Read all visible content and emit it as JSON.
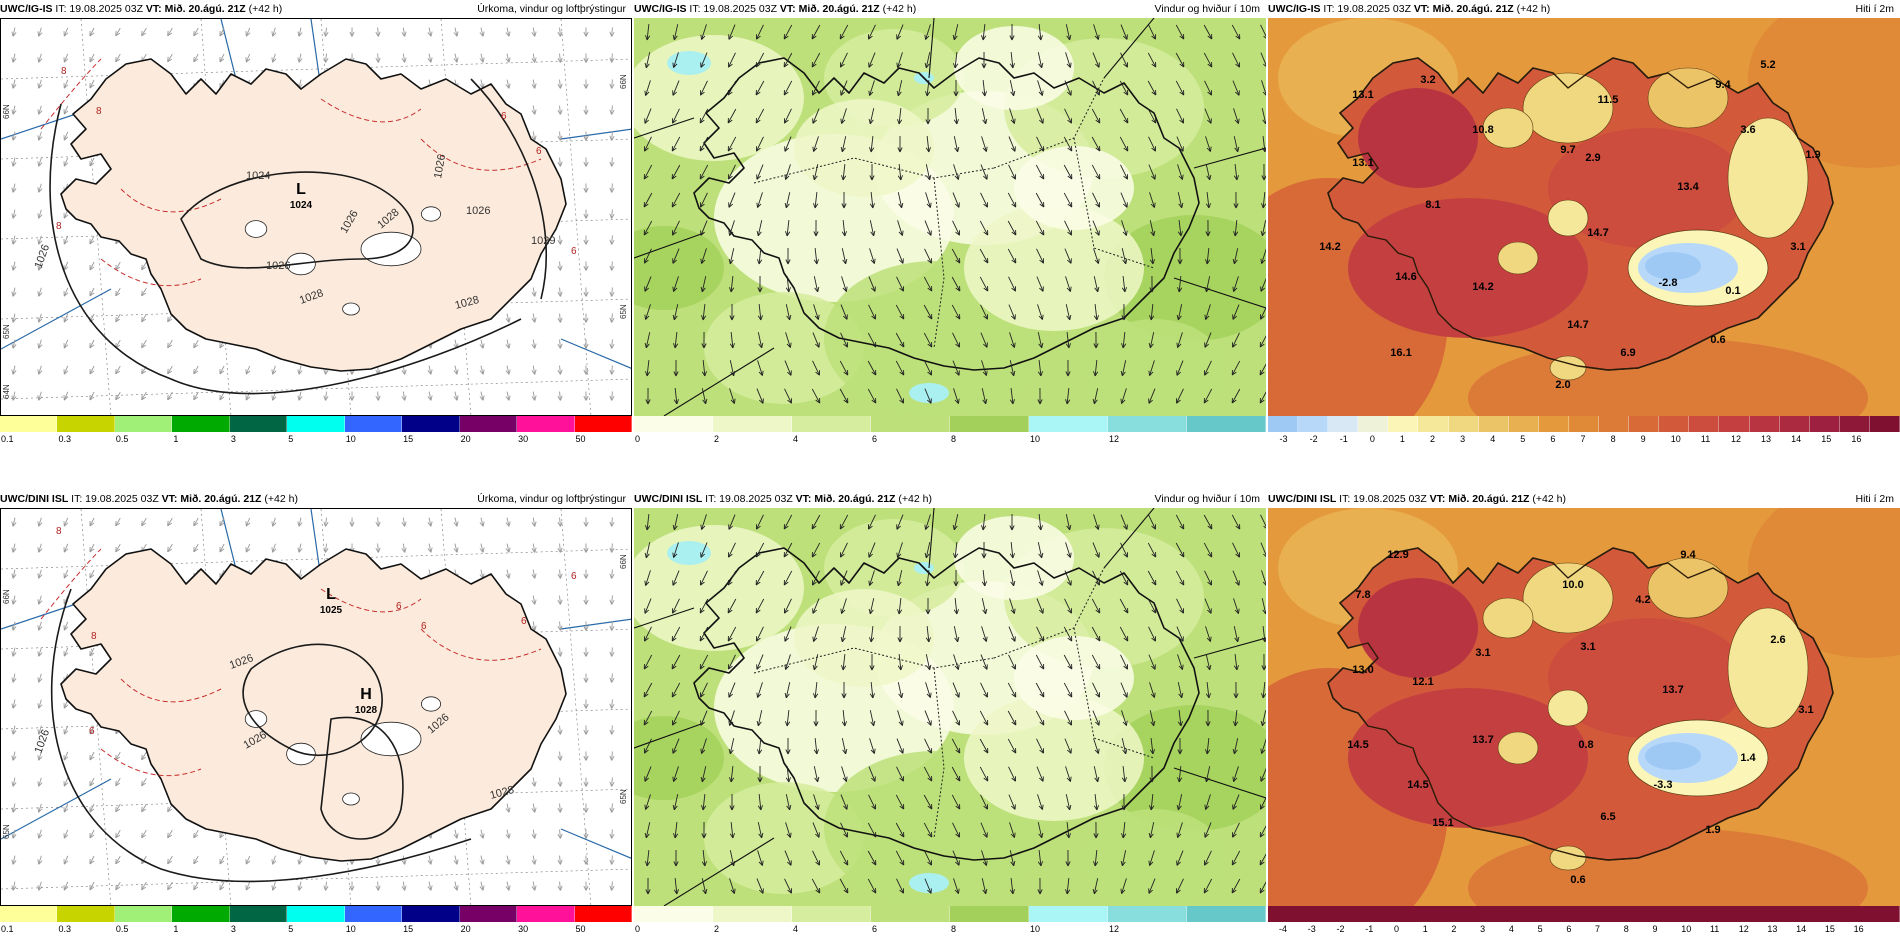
{
  "rows": [
    {
      "model": "UWC/IG-IS",
      "it": "IT: 19.08.2025 03Z",
      "vt": "VT: Mið. 20.ágú. 21Z",
      "lead": "(+42 h)",
      "precip": {
        "title": "Úrkoma, vindur og loftþrýstingur",
        "pressure_labels": [
          "1026",
          "1024",
          "1026",
          "1026",
          "1026",
          "1028",
          "1028",
          "1029",
          "1026",
          "1028"
        ],
        "low": {
          "letter": "L",
          "value": "1024"
        },
        "high": null,
        "red_labels": [
          "8",
          "8",
          "6",
          "6",
          "6",
          "8"
        ],
        "lat_labels": [
          "66N",
          "65N",
          "64N",
          "66N",
          "65N"
        ]
      },
      "wind": {
        "title": "Vindur og hviður í 10m"
      },
      "temp": {
        "title": "Hiti í 2m",
        "labels": [
          "13.1",
          "3.2",
          "11.5",
          "9.4",
          "5.2",
          "10.8",
          "9.7",
          "2.9",
          "3.6",
          "1.9",
          "13.1",
          "8.1",
          "13.4",
          "14.2",
          "14.7",
          "3.1",
          "14.6",
          "14.2",
          "-2.8",
          "0.1",
          "14.7",
          "16.1",
          "6.9",
          "0.6",
          "2.0"
        ]
      },
      "temp_scale": [
        "-3",
        "-2",
        "-1",
        "0",
        "1",
        "2",
        "3",
        "4",
        "5",
        "6",
        "7",
        "8",
        "9",
        "10",
        "11",
        "12",
        "13",
        "14",
        "15",
        "16"
      ]
    },
    {
      "model": "UWC/DINI ISL",
      "it": "IT: 19.08.2025 03Z",
      "vt": "VT: Mið. 20.ágú. 21Z",
      "lead": "(+42 h)",
      "precip": {
        "title": "Úrkoma, vindur og loftþrýstingur",
        "pressure_labels": [
          "1026",
          "1026",
          "1026",
          "1028",
          "1026"
        ],
        "low": {
          "letter": "L",
          "value": "1025"
        },
        "high": {
          "letter": "H",
          "value": "1028"
        },
        "red_labels": [
          "8",
          "6",
          "6",
          "6",
          "6",
          "6",
          "8"
        ],
        "lat_labels": [
          "66N",
          "65N",
          "66N",
          "65N"
        ]
      },
      "wind": {
        "title": "Vindur og hviður í 10m"
      },
      "temp": {
        "title": "Hiti í 2m",
        "labels": [
          "12.9",
          "7.8",
          "10.0",
          "9.4",
          "4.2",
          "2.6",
          "3.1",
          "3.1",
          "13.0",
          "12.1",
          "13.7",
          "3.1",
          "14.5",
          "13.7",
          "0.8",
          "1.4",
          "14.5",
          "-3.3",
          "15.1",
          "6.5",
          "1.9",
          "0.6"
        ]
      },
      "temp_scale": [
        "-4",
        "-3",
        "-2",
        "-1",
        "0",
        "1",
        "2",
        "3",
        "4",
        "5",
        "6",
        "7",
        "8",
        "9",
        "10",
        "11",
        "12",
        "13",
        "14",
        "15",
        "16"
      ]
    }
  ],
  "precip_scale": {
    "labels": [
      "0.1",
      "0.3",
      "0.5",
      "1",
      "3",
      "5",
      "10",
      "15",
      "20",
      "30",
      "50"
    ],
    "colors": [
      "#ffff99",
      "#c8d400",
      "#a0f078",
      "#00aa00",
      "#006644",
      "#00ffee",
      "#3366ff",
      "#000088",
      "#770066",
      "#ff1199",
      "#ff0000"
    ]
  },
  "wind_scale": {
    "labels": [
      "0",
      "2",
      "4",
      "6",
      "8",
      "10",
      "12"
    ],
    "colors": [
      "#fbfde8",
      "#eef7c8",
      "#d6ec9e",
      "#bde07a",
      "#a3d05a",
      "#aaf5f5",
      "#88dddd",
      "#66c8c8"
    ]
  },
  "temp_colors": [
    "#9ec9f5",
    "#b8d8fa",
    "#d8e8f5",
    "#eef2d8",
    "#fbf5b8",
    "#f6e89a",
    "#f0d880",
    "#ecc468",
    "#e8b050",
    "#e49a3c",
    "#e08a38",
    "#dc7a38",
    "#d86a38",
    "#d25a3a",
    "#cc4c3e",
    "#c44040",
    "#b83440",
    "#ac2a40",
    "#9e2040",
    "#8e1838",
    "#801030"
  ],
  "colors": {
    "land": "#fcebdc",
    "glacier": "#ffffff",
    "pressure": "#1a1a1a",
    "precip_contour": "#c83030",
    "lat_lines": "#2a6aa8"
  }
}
